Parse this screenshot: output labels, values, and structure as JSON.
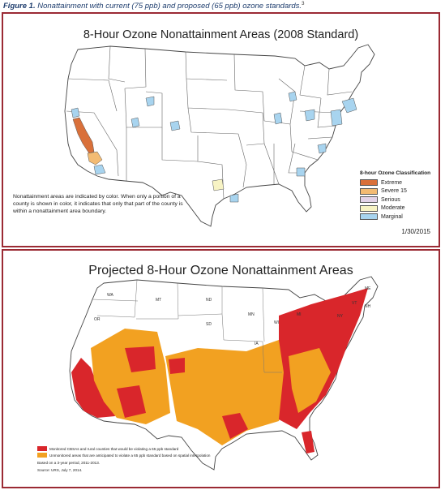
{
  "caption": {
    "label": "Figure 1.",
    "text": "Nonattainment with current (75 ppb) and proposed (65 ppb) ozone standards.",
    "footnote": "3"
  },
  "map1": {
    "title": "8-Hour Ozone Nonattainment Areas (2008 Standard)",
    "note": "Nonattainment areas are indicated by color. When only a portion of a county is shown in color, it indicates that only that part of the county is within a nonattainment area boundary.",
    "date": "1/30/2015",
    "legend": {
      "title": "8-hour Ozone Classification",
      "items": [
        {
          "label": "Extreme",
          "color": "#d9703a"
        },
        {
          "label": "Severe 15",
          "color": "#f3bb73"
        },
        {
          "label": "Serious",
          "color": "#e3d3e8"
        },
        {
          "label": "Moderate",
          "color": "#f7f3c4"
        },
        {
          "label": "Marginal",
          "color": "#a8d4ef"
        }
      ]
    }
  },
  "map2": {
    "title": "Projected 8-Hour Ozone Nonattainment Areas",
    "state_labels": [
      "WA",
      "OR",
      "MT",
      "ND",
      "MN",
      "SD",
      "IA",
      "ME",
      "NH",
      "VT",
      "NY",
      "MI",
      "WI"
    ],
    "legend": {
      "items": [
        {
          "label": "Monitored CBSAs and rural counties that would be violating a 65 ppb standard",
          "color": "#d9262b"
        },
        {
          "label": "Unmonitored areas that are anticipated to violate a 65 ppb standard based on spatial interpolation",
          "color": "#f2a121"
        }
      ],
      "basis": "Based on a 3-year period, 2011-2013.",
      "source": "Source: URS, July 7, 2014."
    }
  },
  "colors": {
    "frame": "#9b2a34",
    "caption": "#1f3e6e",
    "land": "#ffffff",
    "state_border": "#555555"
  }
}
